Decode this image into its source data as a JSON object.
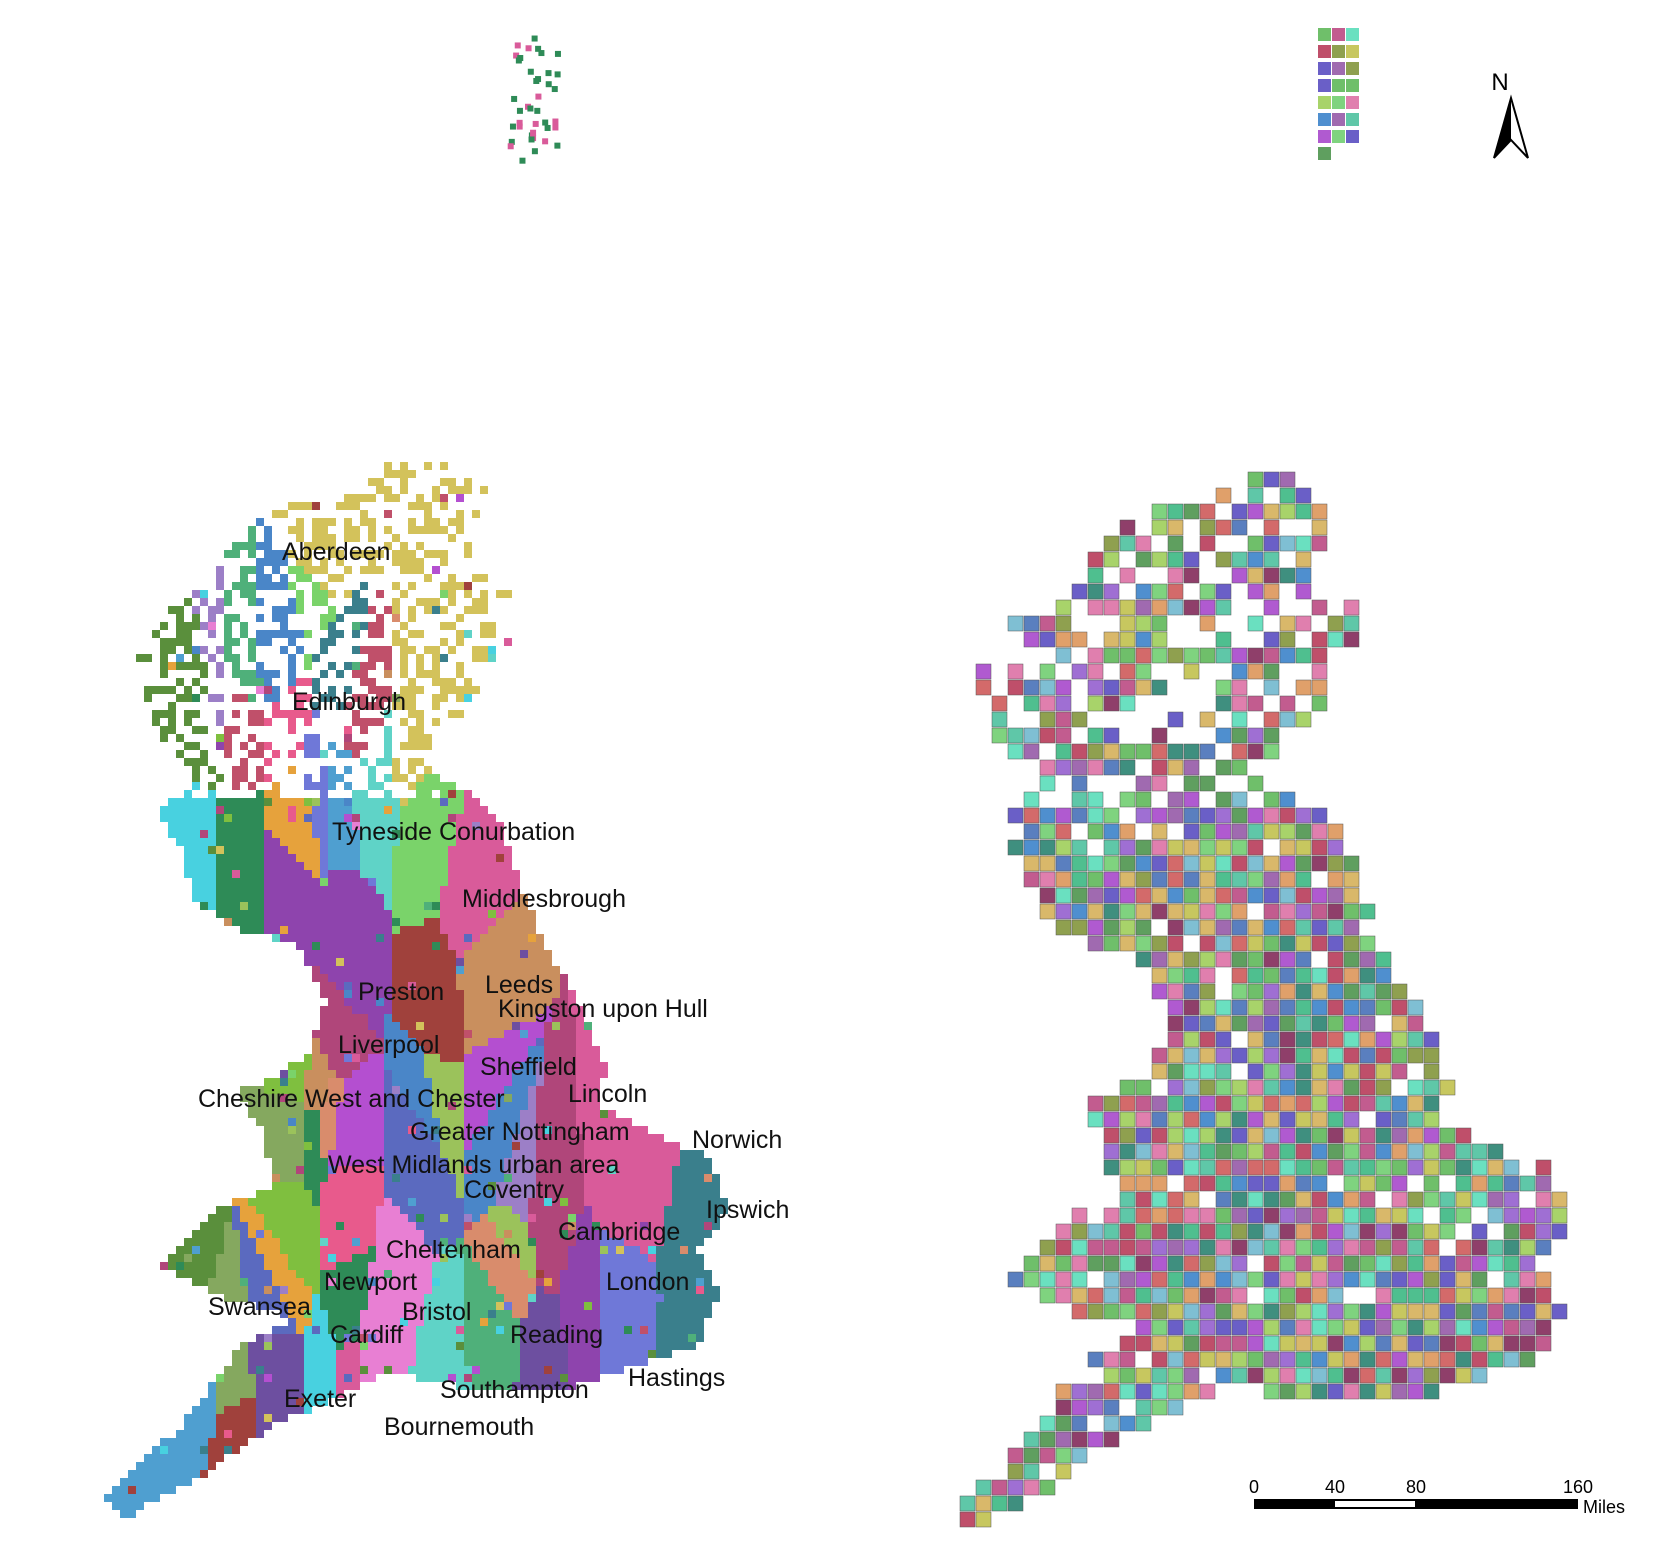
{
  "left_map": {
    "labels": [
      "Aberdeen",
      "Edinburgh",
      "Tyneside Conurbation",
      "Middlesbrough",
      "Preston",
      "Leeds",
      "Kingston upon Hull",
      "Liverpool",
      "Sheffield",
      "Cheshire West and Chester",
      "Lincoln",
      "Greater Nottingham",
      "Norwich",
      "West Midlands urban area",
      "Coventry",
      "Ipswich",
      "Cambridge",
      "Cheltenham",
      "London",
      "Newport",
      "Swansea",
      "Bristol",
      "Cardiff",
      "Reading",
      "Hastings",
      "Exeter",
      "Southampton",
      "Bournemouth"
    ],
    "palette": [
      "#d95b9a",
      "#4a86c8",
      "#8e44ad",
      "#2e8b57",
      "#c0506a",
      "#5b6abf",
      "#e6a23c",
      "#5fd3c7",
      "#7fbf3f",
      "#b44fd0",
      "#3a7f8c",
      "#d98c6c",
      "#9bc25b",
      "#6d4fa0",
      "#e87fd3",
      "#4fb07a",
      "#c98f5e",
      "#85a85f",
      "#a0413c",
      "#6f78d8",
      "#48d1e0",
      "#9c7fc7",
      "#d3c25b",
      "#e85a8c",
      "#7ad36a",
      "#5a8f3c",
      "#b0467a",
      "#4f9fd0"
    ]
  },
  "right_map": {
    "palette": [
      "#6fbf6a",
      "#c25c8f",
      "#4f8fcf",
      "#b05ad0",
      "#5fc7a8",
      "#d9b86a",
      "#8f3f6a",
      "#7fd37f",
      "#3f8f7f",
      "#e07fae",
      "#a8d36a",
      "#6a5fc7",
      "#c7c75f",
      "#5f9f5f",
      "#d36a6a",
      "#7fbfd3",
      "#9f6fd3",
      "#4fbf8f",
      "#e0a06a",
      "#8fa04f",
      "#bf4f6a",
      "#6ae0c0",
      "#a06ab0",
      "#5a7fbf"
    ]
  },
  "north_arrow": {
    "label": "N"
  },
  "scale_bar": {
    "ticks": [
      "0",
      "40",
      "80",
      "160"
    ],
    "tick_values": [
      0,
      40,
      80,
      160
    ],
    "unit": "Miles"
  }
}
